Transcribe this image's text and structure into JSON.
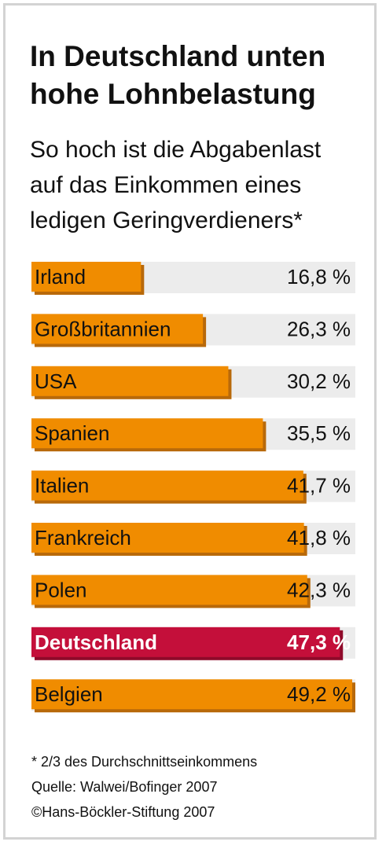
{
  "header": {
    "title_line1": "In Deutschland unten",
    "title_line2": "hohe Lohnbelastung",
    "subtitle_line1": "So hoch ist die Abgabenlast",
    "subtitle_line2": "auf das Einkommen eines",
    "subtitle_line3": "ledigen Geringverdieners*"
  },
  "footer": {
    "footnote": "* 2/3 des Durchschnittseinkommens",
    "source": "Quelle: Walwei/Bofinger 2007",
    "copyright": "©Hans-Böckler-Stiftung 2007"
  },
  "colors": {
    "bar": "#f08c00",
    "bar_shadow": "#b8690a",
    "highlight_bar": "#c40f3a",
    "highlight_shadow": "#8f0a2a",
    "track": "#ececec"
  },
  "chart_data": {
    "type": "bar",
    "orientation": "horizontal",
    "xlim": [
      0,
      50
    ],
    "categories": [
      "Irland",
      "Großbritannien",
      "USA",
      "Spanien",
      "Italien",
      "Frankreich",
      "Polen",
      "Deutschland",
      "Belgien"
    ],
    "values": [
      16.8,
      26.3,
      30.2,
      35.5,
      41.7,
      41.8,
      42.3,
      47.3,
      49.2
    ],
    "value_labels": [
      "16,8 %",
      "26,3 %",
      "30,2 %",
      "35,5 %",
      "41,7 %",
      "41,8 %",
      "42,3 %",
      "47,3 %",
      "49,2 %"
    ],
    "highlight": "Deutschland",
    "grid": false,
    "legend": "none"
  }
}
